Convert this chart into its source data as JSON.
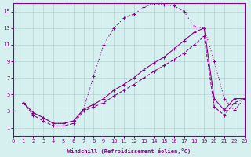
{
  "xlabel": "Windchill (Refroidissement éolien,°C)",
  "bg_color": "#d6f0f0",
  "line_color": "#880088",
  "xlim": [
    0,
    23
  ],
  "ylim": [
    0,
    16
  ],
  "xticks": [
    0,
    1,
    2,
    3,
    4,
    5,
    6,
    7,
    8,
    9,
    10,
    11,
    12,
    13,
    14,
    15,
    16,
    17,
    18,
    19,
    20,
    21,
    22,
    23
  ],
  "yticks": [
    1,
    3,
    5,
    7,
    9,
    11,
    13,
    15
  ],
  "line1_x": [
    1,
    2,
    3,
    4,
    5,
    6,
    7,
    8,
    9,
    10,
    11,
    12,
    13,
    14,
    15,
    16,
    17,
    18,
    19,
    20,
    21,
    22,
    23
  ],
  "line1_y": [
    4.0,
    2.8,
    2.2,
    1.5,
    1.5,
    1.8,
    3.2,
    7.2,
    11.0,
    13.0,
    14.2,
    14.7,
    15.5,
    16.0,
    15.8,
    15.7,
    15.0,
    13.2,
    13.0,
    9.0,
    4.5,
    3.1,
    4.5
  ],
  "line2_x": [
    1,
    2,
    3,
    4,
    5,
    6,
    7,
    8,
    9,
    10,
    11,
    12,
    13,
    14,
    15,
    16,
    17,
    18,
    19,
    20,
    21,
    22,
    23
  ],
  "line2_y": [
    4.0,
    2.8,
    2.2,
    1.5,
    1.5,
    1.8,
    3.2,
    3.8,
    4.5,
    5.5,
    6.2,
    7.0,
    8.0,
    8.8,
    9.5,
    10.5,
    11.5,
    12.5,
    13.0,
    4.5,
    3.1,
    4.5,
    4.5
  ],
  "line3_x": [
    1,
    2,
    3,
    4,
    5,
    6,
    7,
    8,
    9,
    10,
    11,
    12,
    13,
    14,
    15,
    16,
    17,
    18,
    19,
    20,
    21,
    22,
    23
  ],
  "line3_y": [
    4.0,
    2.5,
    1.8,
    1.2,
    1.2,
    1.5,
    3.0,
    3.5,
    4.0,
    4.8,
    5.5,
    6.2,
    7.0,
    7.8,
    8.5,
    9.2,
    10.0,
    11.0,
    12.0,
    3.5,
    2.5,
    4.0,
    4.5
  ]
}
